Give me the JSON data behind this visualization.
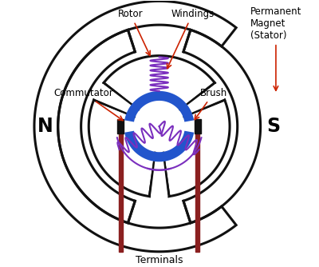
{
  "bg_color": "#ffffff",
  "stator_color": "#111111",
  "rotor_color": "#111111",
  "winding_color": "#7B2FBE",
  "commutator_color": "#2255cc",
  "terminal_color": "#8B2020",
  "label_arrow_color": "#cc2200",
  "text_color": "#000000",
  "N_label": "N",
  "S_label": "S",
  "rotor_label": "Rotor",
  "windings_label": "Windings",
  "commutator_label": "Commutator",
  "brush_label": "Brush",
  "permanent_magnet_label": "Permanent\nMagnet\n(Stator)",
  "terminals_label": "Terminals"
}
